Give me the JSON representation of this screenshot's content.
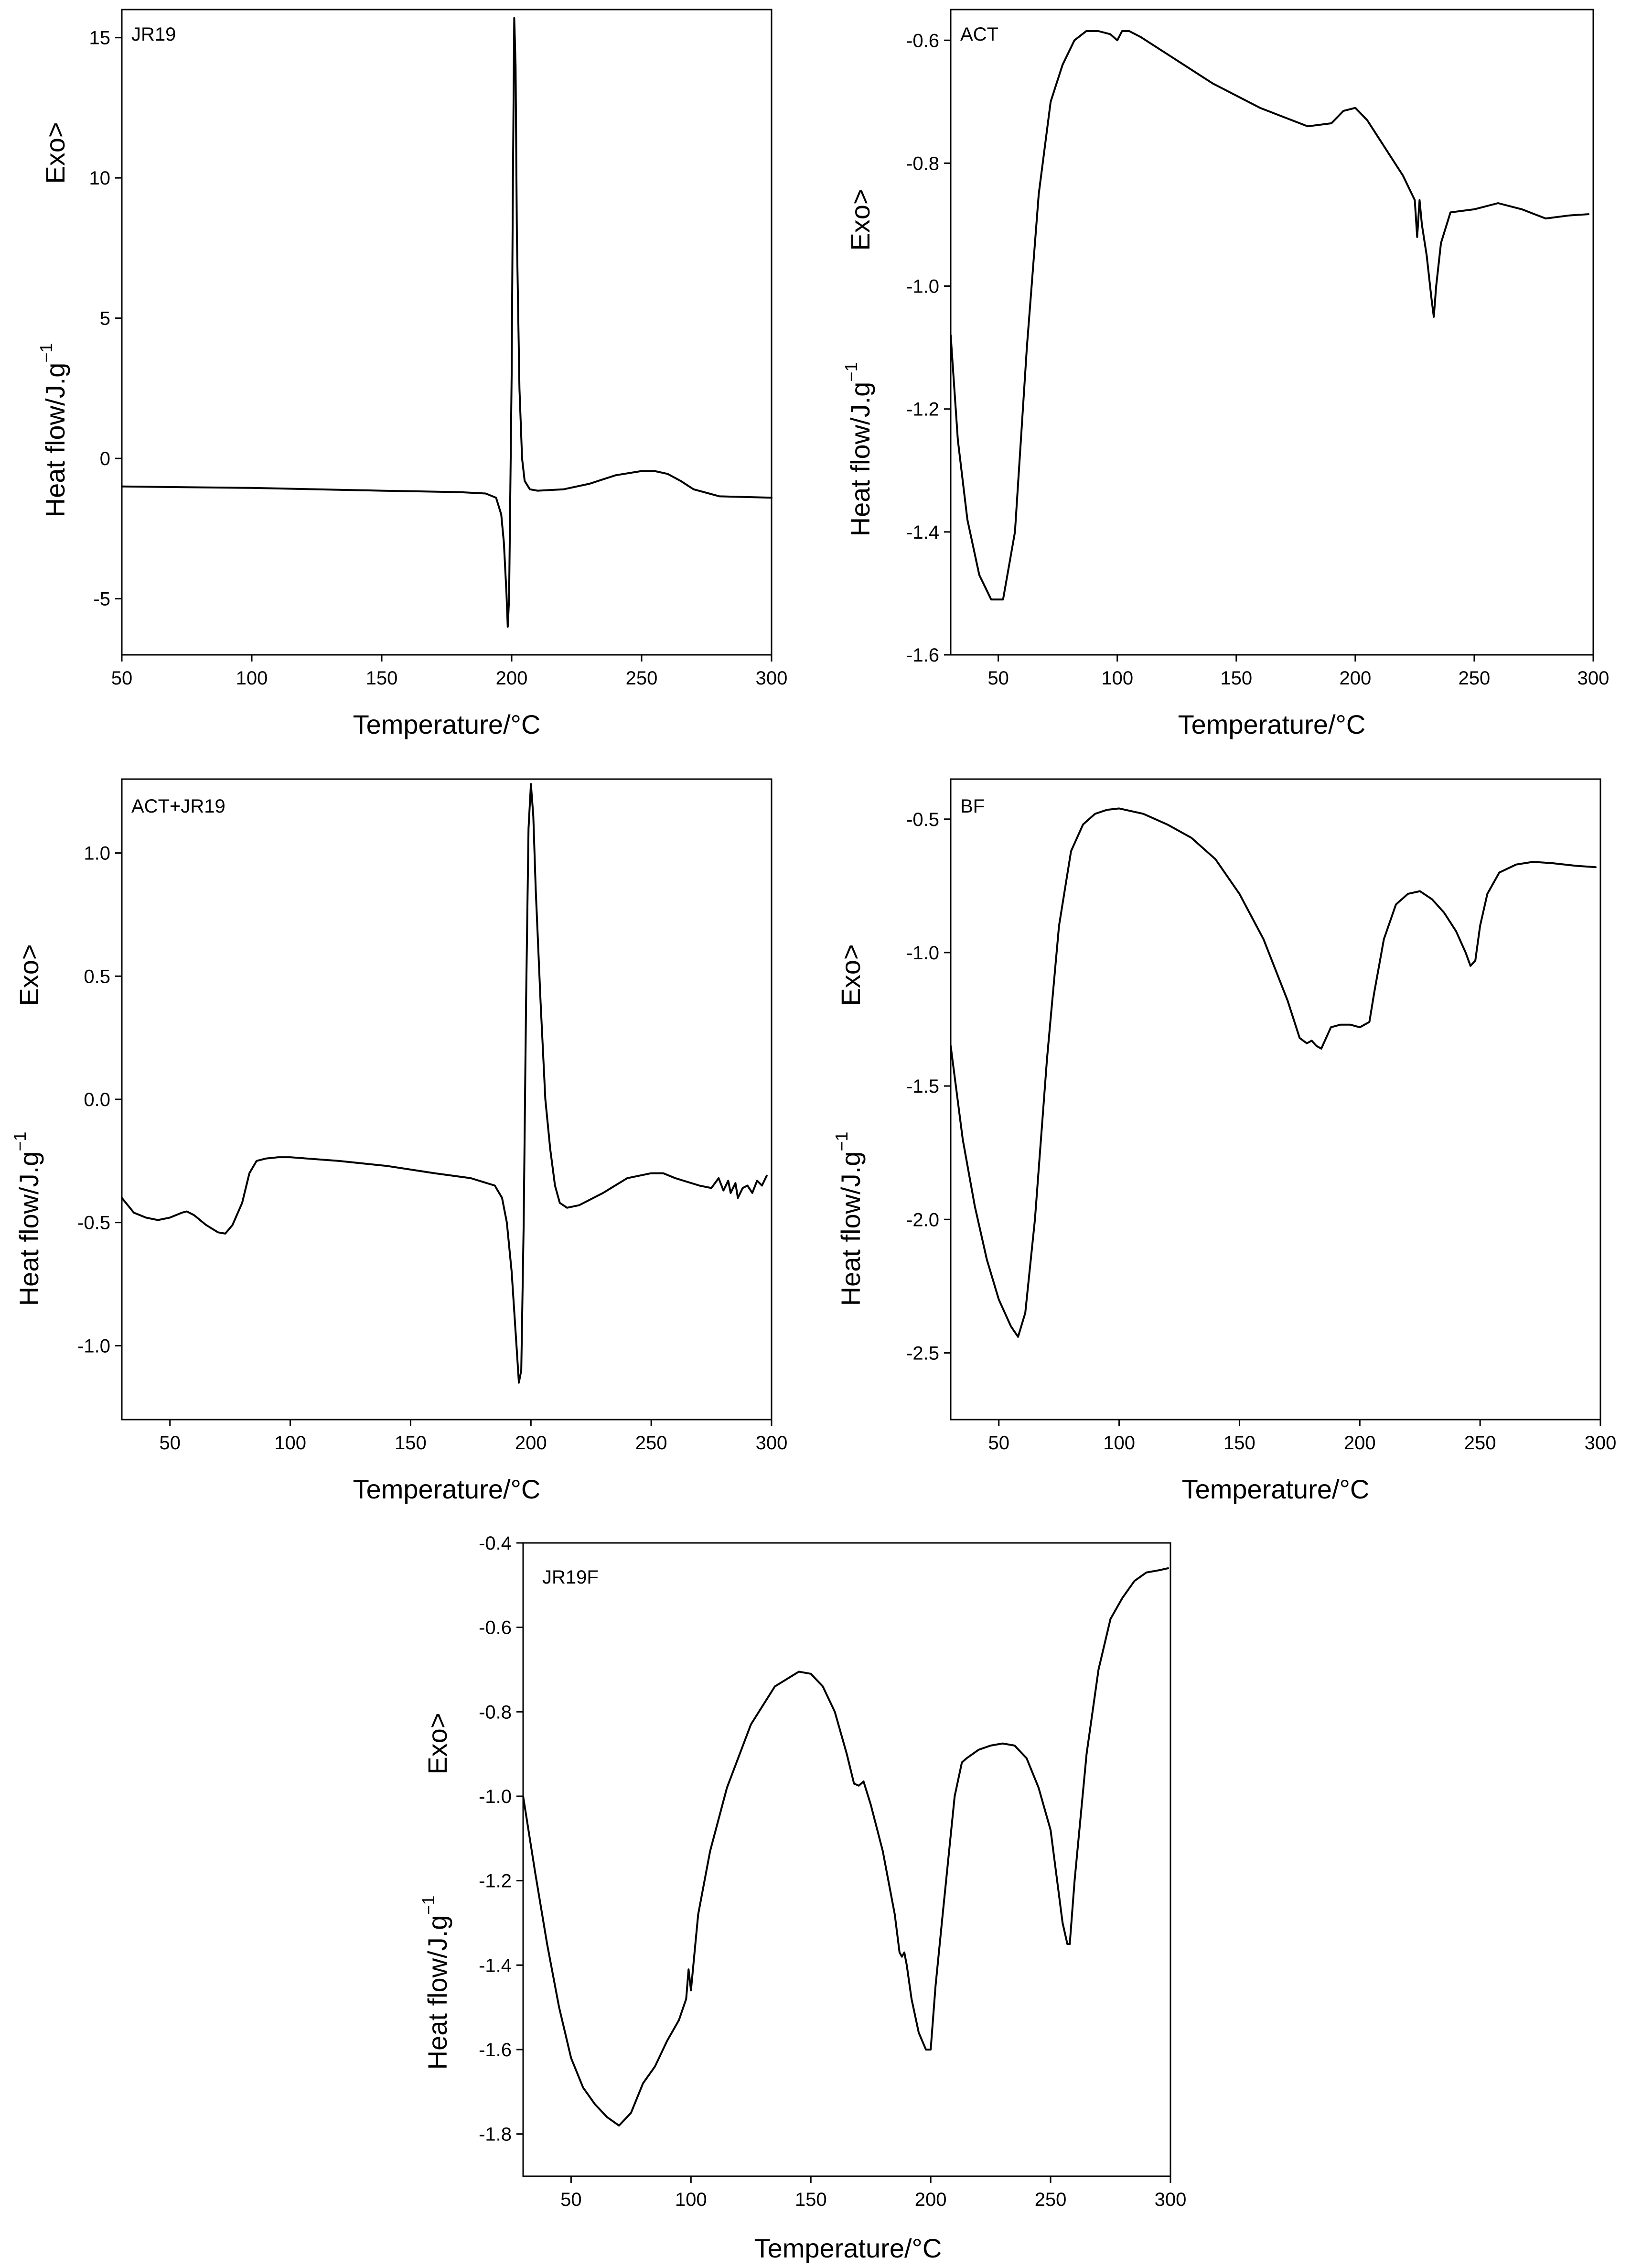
{
  "chart_data": [
    {
      "type": "line",
      "panel_label": "JR19",
      "xlabel": "Temperature/°C",
      "ylabel": "Heat flow/J.g",
      "ylabel_sup": "−1",
      "exo_label": "Exo>",
      "xlim": [
        50,
        300
      ],
      "ylim": [
        -7,
        16
      ],
      "xticks": [
        50,
        100,
        150,
        200,
        250,
        300
      ],
      "yticks": [
        -5,
        0,
        5,
        10,
        15
      ],
      "xtick_labels": [
        "50",
        "100",
        "150",
        "200",
        "250",
        "300"
      ],
      "ytick_labels": [
        "-5",
        "0",
        "5",
        "10",
        "15"
      ],
      "series": [
        {
          "x": [
            50,
            100,
            150,
            180,
            190,
            194,
            196,
            197,
            198,
            198.5,
            199,
            200,
            200.5,
            201,
            201.5,
            202,
            203,
            204,
            205,
            207,
            210,
            220,
            230,
            240,
            250,
            255,
            260,
            265,
            270,
            280,
            300
          ],
          "y": [
            -1.0,
            -1.05,
            -1.15,
            -1.2,
            -1.25,
            -1.4,
            -2.0,
            -3.0,
            -4.8,
            -6.0,
            -5.0,
            3.0,
            10.0,
            15.7,
            14.0,
            8.0,
            2.5,
            0.0,
            -0.8,
            -1.1,
            -1.15,
            -1.1,
            -0.9,
            -0.6,
            -0.45,
            -0.45,
            -0.55,
            -0.8,
            -1.1,
            -1.35,
            -1.4
          ]
        }
      ]
    },
    {
      "type": "line",
      "panel_label": "ACT",
      "xlabel": "Temperature/°C",
      "ylabel": "Heat flow/J.g",
      "ylabel_sup": "−1",
      "exo_label": "Exo>",
      "xlim": [
        30,
        300
      ],
      "ylim": [
        -1.6,
        -0.55
      ],
      "xticks": [
        50,
        100,
        150,
        200,
        250,
        300
      ],
      "yticks": [
        -1.6,
        -1.4,
        -1.2,
        -1.0,
        -0.8,
        -0.6
      ],
      "xtick_labels": [
        "50",
        "100",
        "150",
        "200",
        "250",
        "300"
      ],
      "ytick_labels": [
        "-1.6",
        "-1.4",
        "-1.2",
        "-1.0",
        "-0.8",
        "-0.6"
      ],
      "series": [
        {
          "x": [
            30,
            33,
            37,
            42,
            47,
            52,
            57,
            62,
            67,
            72,
            77,
            82,
            87,
            92,
            97,
            100,
            102,
            105,
            110,
            120,
            140,
            160,
            180,
            190,
            195,
            200,
            205,
            210,
            215,
            220,
            225,
            226,
            227,
            228,
            230,
            232,
            233,
            234,
            236,
            240,
            250,
            260,
            270,
            280,
            290,
            298
          ],
          "y": [
            -1.08,
            -1.25,
            -1.38,
            -1.47,
            -1.51,
            -1.51,
            -1.4,
            -1.1,
            -0.85,
            -0.7,
            -0.64,
            -0.6,
            -0.585,
            -0.585,
            -0.59,
            -0.6,
            -0.585,
            -0.585,
            -0.595,
            -0.62,
            -0.67,
            -0.71,
            -0.74,
            -0.735,
            -0.715,
            -0.71,
            -0.73,
            -0.76,
            -0.79,
            -0.82,
            -0.86,
            -0.92,
            -0.86,
            -0.9,
            -0.95,
            -1.02,
            -1.05,
            -1.0,
            -0.93,
            -0.88,
            -0.875,
            -0.865,
            -0.875,
            -0.89,
            -0.885,
            -0.883
          ]
        }
      ]
    },
    {
      "type": "line",
      "panel_label": "ACT+JR19",
      "xlabel": "Temperature/°C",
      "ylabel": "Heat flow/J.g",
      "ylabel_sup": "−1",
      "exo_label": "Exo>",
      "xlim": [
        30,
        300
      ],
      "ylim": [
        -1.3,
        1.3
      ],
      "xticks": [
        50,
        100,
        150,
        200,
        250,
        300
      ],
      "yticks": [
        -1.0,
        -0.5,
        0.0,
        0.5,
        1.0
      ],
      "xtick_labels": [
        "50",
        "100",
        "150",
        "200",
        "250",
        "300"
      ],
      "ytick_labels": [
        "-1.0",
        "-0.5",
        "0.0",
        "0.5",
        "1.0"
      ],
      "series": [
        {
          "x": [
            30,
            35,
            40,
            45,
            50,
            55,
            57,
            60,
            65,
            70,
            73,
            76,
            80,
            83,
            86,
            90,
            95,
            100,
            120,
            140,
            160,
            175,
            185,
            188,
            190,
            192,
            194,
            195,
            196,
            197,
            198,
            199,
            200,
            201,
            202,
            204,
            206,
            208,
            210,
            212,
            215,
            220,
            230,
            240,
            250,
            255,
            260,
            270,
            275,
            278,
            280,
            282,
            283,
            285,
            286,
            288,
            290,
            292,
            294,
            296,
            298
          ],
          "y": [
            -0.4,
            -0.46,
            -0.48,
            -0.49,
            -0.48,
            -0.46,
            -0.455,
            -0.47,
            -0.51,
            -0.54,
            -0.545,
            -0.51,
            -0.42,
            -0.3,
            -0.25,
            -0.24,
            -0.235,
            -0.235,
            -0.25,
            -0.27,
            -0.3,
            -0.32,
            -0.35,
            -0.4,
            -0.5,
            -0.7,
            -1.0,
            -1.15,
            -1.1,
            -0.5,
            0.4,
            1.1,
            1.28,
            1.15,
            0.85,
            0.4,
            0.0,
            -0.2,
            -0.35,
            -0.42,
            -0.44,
            -0.43,
            -0.38,
            -0.32,
            -0.3,
            -0.3,
            -0.32,
            -0.35,
            -0.36,
            -0.32,
            -0.37,
            -0.33,
            -0.38,
            -0.34,
            -0.4,
            -0.36,
            -0.35,
            -0.38,
            -0.33,
            -0.35,
            -0.31
          ]
        }
      ]
    },
    {
      "type": "line",
      "panel_label": "BF",
      "xlabel": "Temperature/°C",
      "ylabel": "Heat flow/J.g",
      "ylabel_sup": "−1",
      "exo_label": "Exo>",
      "xlim": [
        30,
        300
      ],
      "ylim": [
        -2.75,
        -0.35
      ],
      "xticks": [
        50,
        100,
        150,
        200,
        250,
        300
      ],
      "yticks": [
        -2.5,
        -2.0,
        -1.5,
        -1.0,
        -0.5
      ],
      "xtick_labels": [
        "50",
        "100",
        "150",
        "200",
        "250",
        "300"
      ],
      "ytick_labels": [
        "-2.5",
        "-2.0",
        "-1.5",
        "-1.0",
        "-0.5"
      ],
      "series": [
        {
          "x": [
            30,
            35,
            40,
            45,
            50,
            55,
            58,
            61,
            65,
            70,
            75,
            80,
            85,
            90,
            95,
            100,
            110,
            120,
            130,
            140,
            150,
            160,
            170,
            175,
            178,
            180,
            182,
            184,
            186,
            188,
            192,
            196,
            200,
            204,
            206,
            210,
            215,
            220,
            225,
            230,
            235,
            240,
            244,
            246,
            248,
            250,
            253,
            258,
            265,
            272,
            280,
            290,
            298
          ],
          "y": [
            -1.35,
            -1.7,
            -1.95,
            -2.15,
            -2.3,
            -2.4,
            -2.44,
            -2.35,
            -2.0,
            -1.4,
            -0.9,
            -0.62,
            -0.52,
            -0.48,
            -0.465,
            -0.46,
            -0.48,
            -0.52,
            -0.57,
            -0.65,
            -0.78,
            -0.95,
            -1.18,
            -1.32,
            -1.34,
            -1.33,
            -1.35,
            -1.36,
            -1.32,
            -1.28,
            -1.27,
            -1.27,
            -1.28,
            -1.26,
            -1.15,
            -0.95,
            -0.82,
            -0.78,
            -0.77,
            -0.8,
            -0.85,
            -0.92,
            -1.0,
            -1.05,
            -1.03,
            -0.9,
            -0.78,
            -0.7,
            -0.67,
            -0.66,
            -0.665,
            -0.675,
            -0.68
          ]
        }
      ]
    },
    {
      "type": "line",
      "panel_label": "JR19F",
      "xlabel": "Temperature/°C",
      "ylabel": "Heat flow/J.g",
      "ylabel_sup": "−1",
      "exo_label": "Exo>",
      "xlim": [
        30,
        300
      ],
      "ylim": [
        -1.9,
        -0.4
      ],
      "xticks": [
        50,
        100,
        150,
        200,
        250,
        300
      ],
      "yticks": [
        -1.8,
        -1.6,
        -1.4,
        -1.2,
        -1.0,
        -0.8,
        -0.6,
        -0.4
      ],
      "xtick_labels": [
        "50",
        "100",
        "150",
        "200",
        "250",
        "300"
      ],
      "ytick_labels": [
        "-1.8",
        "-1.6",
        "-1.4",
        "-1.2",
        "-1.0",
        "-0.8",
        "-0.6",
        "-0.4"
      ],
      "series": [
        {
          "x": [
            30,
            35,
            40,
            45,
            50,
            55,
            60,
            65,
            70,
            75,
            80,
            85,
            90,
            95,
            98,
            99,
            100,
            101,
            103,
            108,
            115,
            125,
            135,
            145,
            150,
            155,
            160,
            165,
            168,
            170,
            172,
            175,
            180,
            185,
            187,
            188,
            189,
            190,
            192,
            195,
            198,
            200,
            202,
            205,
            210,
            213,
            215,
            220,
            225,
            230,
            235,
            240,
            245,
            250,
            255,
            257,
            258,
            260,
            265,
            270,
            275,
            280,
            285,
            290,
            295,
            299
          ],
          "y": [
            -1.0,
            -1.18,
            -1.35,
            -1.5,
            -1.62,
            -1.69,
            -1.73,
            -1.76,
            -1.78,
            -1.75,
            -1.68,
            -1.64,
            -1.58,
            -1.53,
            -1.48,
            -1.41,
            -1.46,
            -1.4,
            -1.28,
            -1.13,
            -0.98,
            -0.83,
            -0.74,
            -0.705,
            -0.71,
            -0.74,
            -0.8,
            -0.9,
            -0.97,
            -0.975,
            -0.965,
            -1.02,
            -1.13,
            -1.28,
            -1.37,
            -1.38,
            -1.37,
            -1.4,
            -1.48,
            -1.56,
            -1.6,
            -1.6,
            -1.45,
            -1.28,
            -1.0,
            -0.92,
            -0.91,
            -0.89,
            -0.88,
            -0.875,
            -0.88,
            -0.91,
            -0.98,
            -1.08,
            -1.3,
            -1.35,
            -1.35,
            -1.2,
            -0.9,
            -0.7,
            -0.58,
            -0.53,
            -0.49,
            -0.47,
            -0.465,
            -0.46
          ]
        }
      ]
    }
  ]
}
